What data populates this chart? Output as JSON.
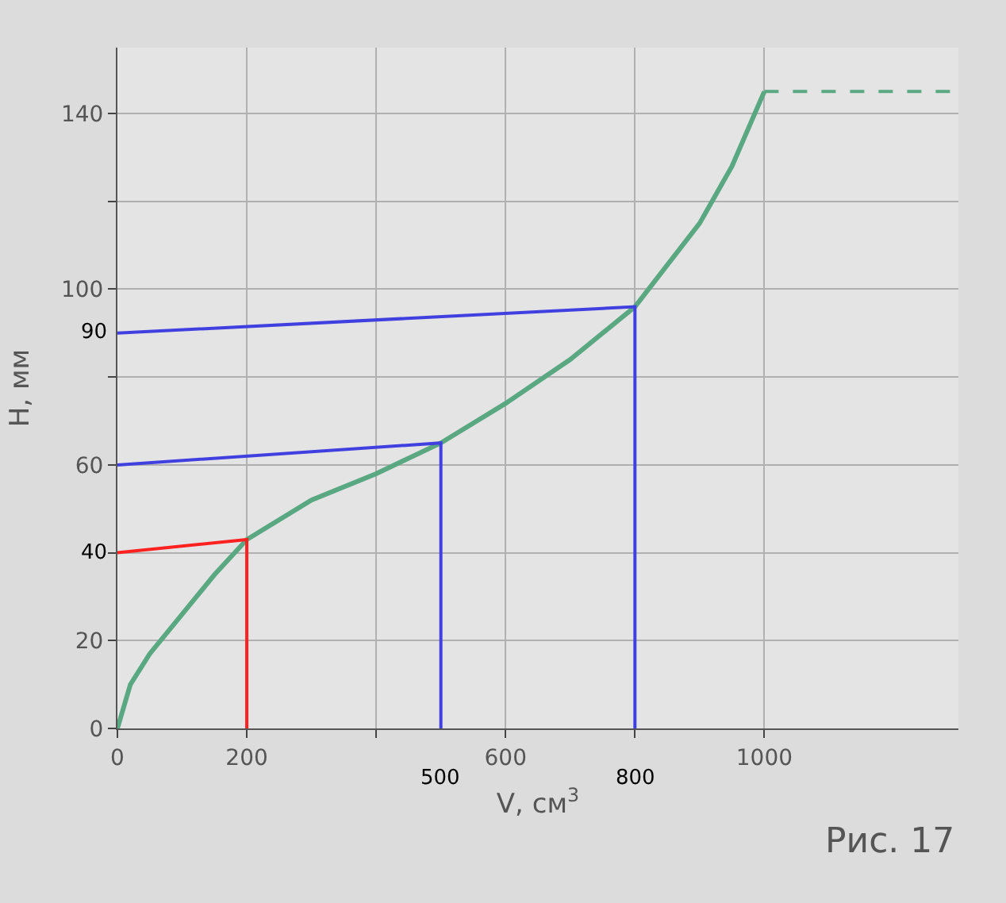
{
  "chart_data": {
    "type": "line",
    "xlabel": "V, см$^{3}$",
    "ylabel": "H, мм",
    "xlim": [
      0,
      1300
    ],
    "ylim": [
      0,
      155
    ],
    "xticks": [
      0,
      200,
      {
        "value": 400,
        "label": null
      },
      600,
      {
        "value": 800,
        "label": null
      },
      1000
    ],
    "yticks": [
      0,
      20,
      {
        "value": 40,
        "label": null
      },
      60,
      {
        "value": 80,
        "label": null
      },
      100,
      {
        "value": 120,
        "label": null
      },
      140
    ],
    "grid": true,
    "marker": "none",
    "series": [
      {
        "color": "#5aa882",
        "x": [
          0,
          20,
          50,
          100,
          150,
          200,
          300,
          400,
          500,
          600,
          700,
          800,
          900,
          950,
          1000
        ],
        "values": [
          0,
          10,
          17,
          26,
          35,
          43,
          52,
          58,
          65,
          74,
          84,
          96,
          115,
          128,
          145
        ]
      },
      {
        "color": "#5aa882",
        "line_style": "dashed",
        "x": [
          1000,
          1300
        ],
        "values": [
          145,
          145
        ]
      },
      {
        "color": "#ff2020",
        "x": [
          0,
          200,
          200
        ],
        "values": [
          40,
          43,
          0
        ]
      },
      {
        "color": "#4040e0",
        "x": [
          0,
          500,
          500
        ],
        "values": [
          60,
          65,
          0
        ]
      },
      {
        "color": "#4040e0",
        "x": [
          0,
          800,
          800
        ],
        "values": [
          90,
          96,
          0
        ]
      }
    ],
    "annotations": [
      {
        "text": "40",
        "x": 0,
        "y": 40
      },
      {
        "text": "90",
        "x": 0,
        "y": 90
      },
      {
        "text": "500",
        "x": 500,
        "y": 0
      },
      {
        "text": "800",
        "x": 800,
        "y": 0
      },
      "Рис. 17"
    ]
  }
}
